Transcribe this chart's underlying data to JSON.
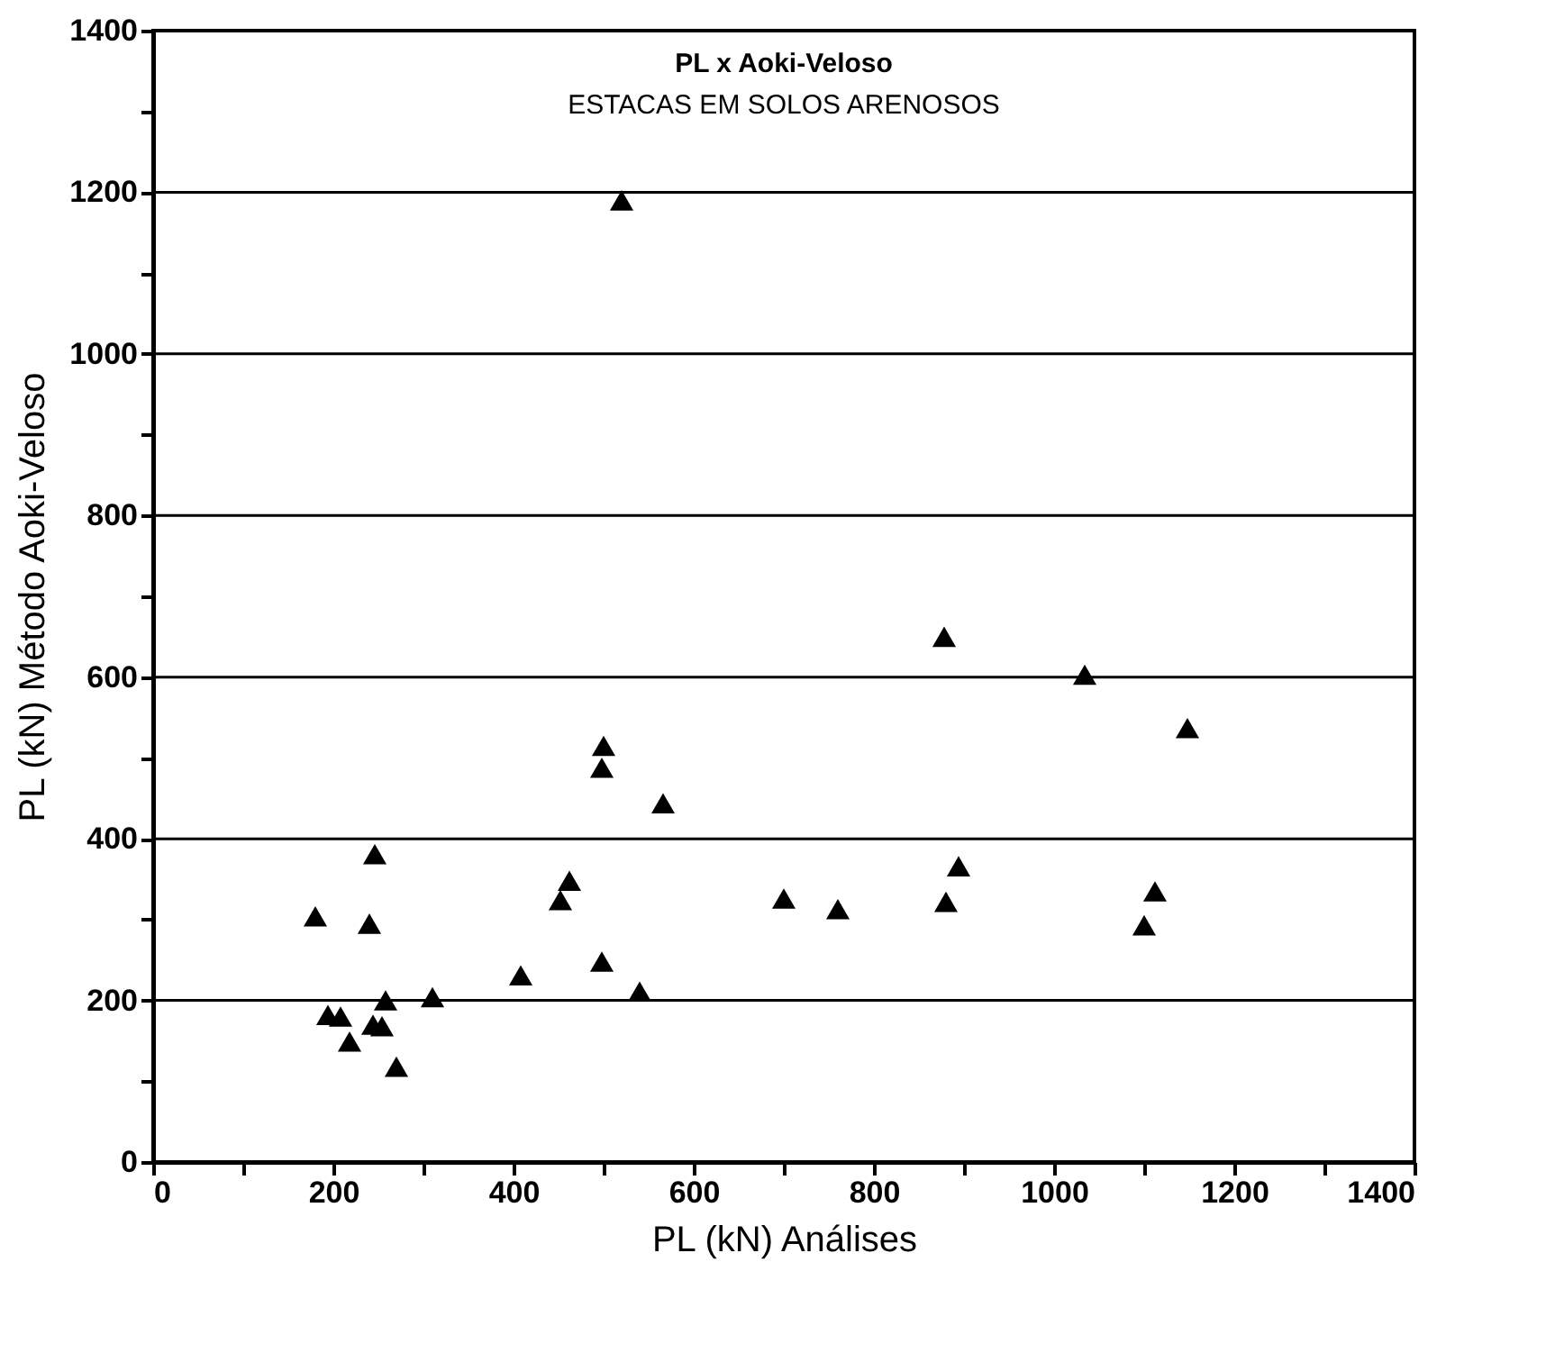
{
  "chart_data": {
    "type": "scatter",
    "title": "PL x Aoki-Veloso",
    "subtitle": "ESTACAS EM SOLOS ARENOSOS",
    "xlabel": "PL (kN)  Análises",
    "ylabel": "PL (kN)  Método Aoki-Veloso",
    "x": [
      520,
      500,
      498,
      566,
      246,
      462,
      452,
      180,
      240,
      408,
      498,
      540,
      310,
      258,
      194,
      208,
      244,
      254,
      218,
      270,
      878,
      1034,
      1148,
      894,
      700,
      760,
      880,
      1112,
      1100
    ],
    "values": [
      1190,
      515,
      488,
      444,
      381,
      348,
      324,
      304,
      295,
      231,
      248,
      211,
      204,
      200,
      182,
      180,
      170,
      168,
      149,
      118,
      650,
      603,
      537,
      366,
      326,
      313,
      322,
      335,
      293
    ],
    "color": "#000000",
    "marker": "triangle",
    "grid": "y",
    "xlim": [
      0,
      1400
    ],
    "ylim": [
      0,
      1400
    ],
    "xticks": [
      0,
      {
        "value": 100,
        "label": null
      },
      200,
      {
        "value": 300,
        "label": null
      },
      400,
      {
        "value": 500,
        "label": null
      },
      600,
      {
        "value": 700,
        "label": null
      },
      800,
      {
        "value": 900,
        "label": null
      },
      1000,
      {
        "value": 1100,
        "label": null
      },
      1200,
      {
        "value": 1300,
        "label": null
      },
      1400
    ],
    "yticks": [
      0,
      {
        "value": 100,
        "label": null
      },
      200,
      {
        "value": 300,
        "label": null
      },
      400,
      {
        "value": 500,
        "label": null
      },
      600,
      {
        "value": 700,
        "label": null
      },
      800,
      {
        "value": 900,
        "label": null
      },
      1000,
      {
        "value": 1100,
        "label": null
      },
      1200,
      {
        "value": 1300,
        "label": null
      },
      1400
    ]
  }
}
